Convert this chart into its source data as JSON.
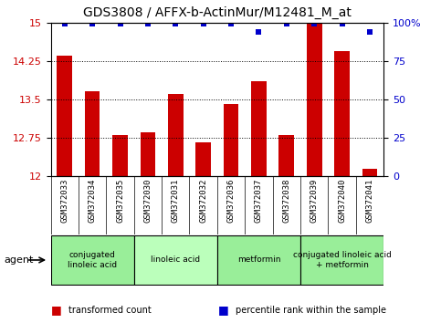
{
  "title": "GDS3808 / AFFX-b-ActinMur/M12481_M_at",
  "samples": [
    "GSM372033",
    "GSM372034",
    "GSM372035",
    "GSM372030",
    "GSM372031",
    "GSM372032",
    "GSM372036",
    "GSM372037",
    "GSM372038",
    "GSM372039",
    "GSM372040",
    "GSM372041"
  ],
  "bar_values": [
    14.35,
    13.65,
    12.8,
    12.85,
    13.6,
    12.65,
    13.4,
    13.85,
    12.8,
    14.98,
    14.45,
    12.15
  ],
  "dot_values": [
    99,
    99,
    99,
    99,
    99,
    99,
    99,
    94,
    99,
    99,
    99,
    94
  ],
  "ylim_left": [
    12,
    15
  ],
  "ylim_right": [
    0,
    100
  ],
  "yticks_left": [
    12,
    12.75,
    13.5,
    14.25,
    15
  ],
  "ytick_labels_left": [
    "12",
    "12.75",
    "13.5",
    "14.25",
    "15"
  ],
  "yticks_right": [
    0,
    25,
    50,
    75,
    100
  ],
  "ytick_labels_right": [
    "0",
    "25",
    "50",
    "75",
    "100%"
  ],
  "bar_color": "#cc0000",
  "dot_color": "#0000cc",
  "sample_bg_color": "#c8c8c8",
  "agent_groups": [
    {
      "label": "conjugated\nlinoleic acid",
      "start": 0,
      "end": 3,
      "color": "#99ee99"
    },
    {
      "label": "linoleic acid",
      "start": 3,
      "end": 6,
      "color": "#bbffbb"
    },
    {
      "label": "metformin",
      "start": 6,
      "end": 9,
      "color": "#99ee99"
    },
    {
      "label": "conjugated linoleic acid\n+ metformin",
      "start": 9,
      "end": 12,
      "color": "#99ee99"
    }
  ],
  "legend_items": [
    {
      "label": "transformed count",
      "color": "#cc0000"
    },
    {
      "label": "percentile rank within the sample",
      "color": "#0000cc"
    }
  ],
  "bar_width": 0.55,
  "figsize": [
    4.83,
    3.54
  ],
  "dpi": 100
}
